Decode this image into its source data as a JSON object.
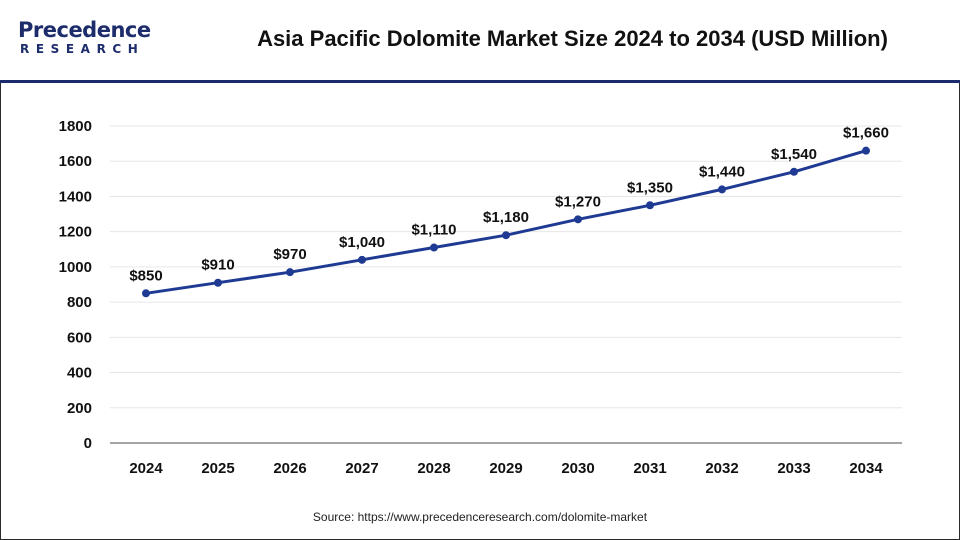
{
  "header": {
    "logo_top": "Precedence",
    "logo_bottom": "RESEARCH",
    "title": "Asia Pacific Dolomite Market Size 2024 to 2034 (USD Million)"
  },
  "footer": {
    "source": "Source: https://www.precedenceresearch.com/dolomite-market"
  },
  "colors": {
    "line": "#1f3a93",
    "brand": "#1d2c6b",
    "grid": "#e6e6e6",
    "axis": "#888888"
  },
  "chart_data": {
    "type": "line",
    "title": "Asia Pacific Dolomite Market Size 2024 to 2034 (USD Million)",
    "xlabel": "",
    "ylabel": "",
    "categories": [
      "2024",
      "2025",
      "2026",
      "2027",
      "2028",
      "2029",
      "2030",
      "2031",
      "2032",
      "2033",
      "2034"
    ],
    "values": [
      850,
      910,
      970,
      1040,
      1110,
      1180,
      1270,
      1350,
      1440,
      1540,
      1660
    ],
    "data_labels": [
      "$850",
      "$910",
      "$970",
      "$1,040",
      "$1,110",
      "$1,180",
      "$1,270",
      "$1,350",
      "$1,440",
      "$1,540",
      "$1,660"
    ],
    "ylim": [
      0,
      1800
    ],
    "yticks": [
      0,
      200,
      400,
      600,
      800,
      1000,
      1200,
      1400,
      1600,
      1800
    ],
    "grid": true,
    "legend": "none"
  }
}
